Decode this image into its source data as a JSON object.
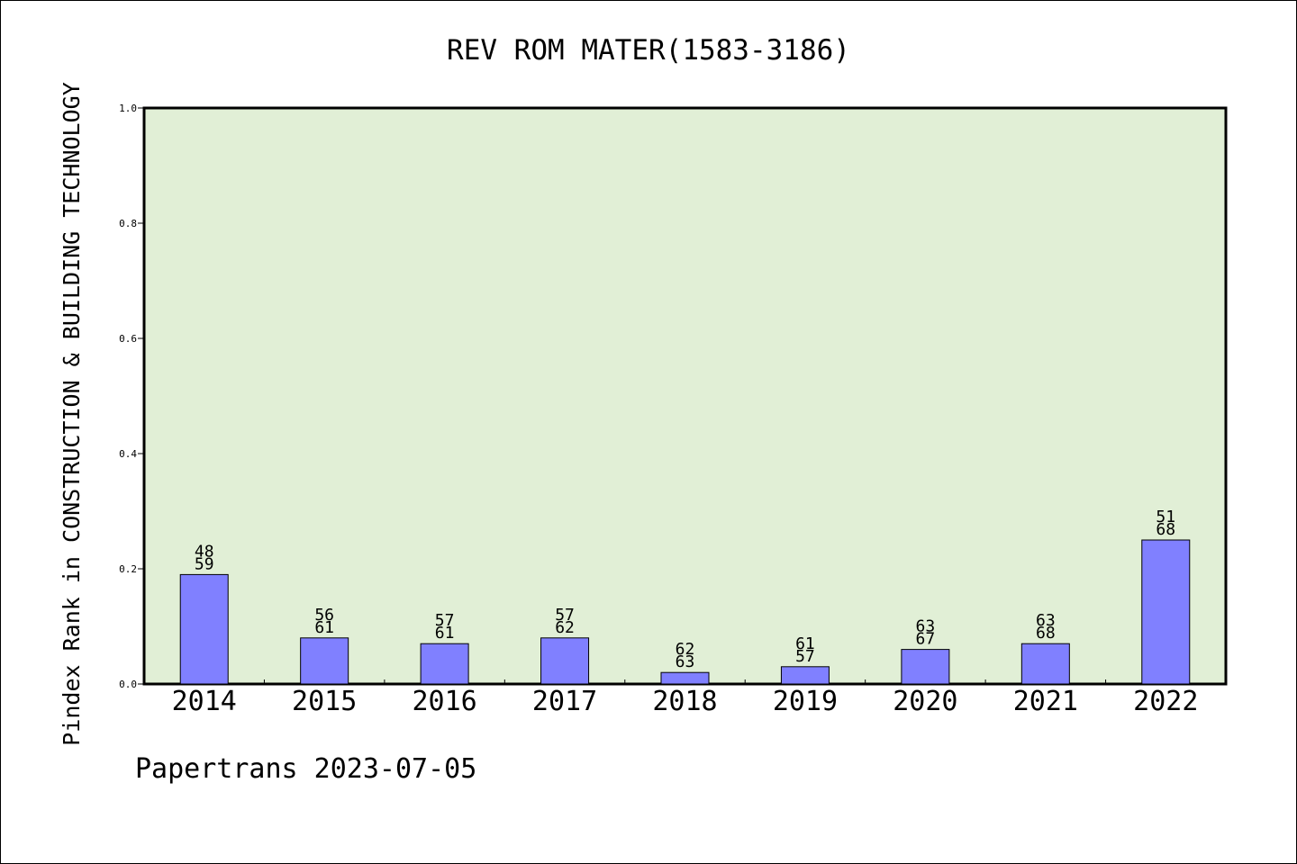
{
  "chart_data": {
    "type": "bar",
    "title": "REV ROM MATER(1583-3186)",
    "ylabel": "Pindex Rank in CONSTRUCTION & BUILDING TECHNOLOGY",
    "xlabel": "",
    "ylim": [
      0,
      1.0
    ],
    "yticks": [
      "0.0",
      "0.2",
      "0.4",
      "0.6",
      "0.8",
      "1.0"
    ],
    "categories": [
      "2014",
      "2015",
      "2016",
      "2017",
      "2018",
      "2019",
      "2020",
      "2021",
      "2022"
    ],
    "values": [
      0.19,
      0.08,
      0.07,
      0.08,
      0.02,
      0.03,
      0.06,
      0.07,
      0.25
    ],
    "label_top": [
      "48",
      "56",
      "57",
      "57",
      "62",
      "61",
      "63",
      "63",
      "51"
    ],
    "label_bottom": [
      "59",
      "61",
      "61",
      "62",
      "63",
      "57",
      "67",
      "68",
      "68"
    ],
    "grid": false,
    "colors": {
      "plot_background": "#e1efd6",
      "bar_fill": "#8080ff",
      "bar_stroke": "#000000"
    }
  },
  "footer": {
    "credit": "Papertrans 2023-07-05"
  }
}
